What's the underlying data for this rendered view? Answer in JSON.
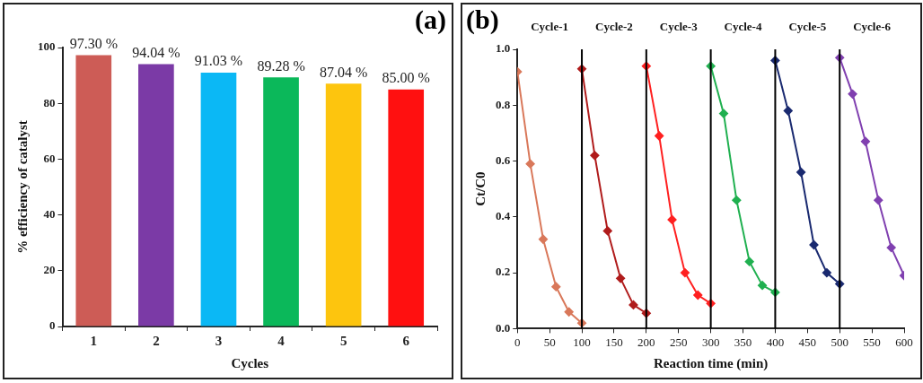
{
  "chart_data": [
    {
      "type": "bar",
      "xlabel": "Cycles",
      "ylabel": "% efficiency of catalyst",
      "categories": [
        "1",
        "2",
        "3",
        "4",
        "5",
        "6"
      ],
      "values": [
        97.3,
        94.04,
        91.03,
        89.28,
        87.04,
        85.0
      ],
      "colors": [
        "#cd5c56",
        "#7b3aa6",
        "#0bb8f5",
        "#0bb85a",
        "#fdc50e",
        "#ff1010"
      ],
      "value_labels": [
        "97.30 %",
        "94.04 %",
        "91.03 %",
        "89.28 %",
        "87.04 %",
        "85.00 %"
      ],
      "ylim": [
        0,
        100
      ],
      "yticks": [
        0,
        20,
        40,
        60,
        80,
        100
      ],
      "grid": false,
      "legend": false,
      "annotations": [
        "(a)"
      ]
    },
    {
      "type": "line",
      "xlabel": "Reaction time (min)",
      "ylabel": "Ct/C0",
      "marker": "diamond",
      "grid": false,
      "legend": false,
      "xlim": [
        0,
        600
      ],
      "xticks": [
        0,
        50,
        100,
        150,
        200,
        250,
        300,
        350,
        400,
        450,
        500,
        550,
        600
      ],
      "ylim": [
        0,
        1
      ],
      "yticks": [
        {
          "value": 0,
          "label": "0.0"
        },
        0.2,
        0.4,
        0.6,
        0.8,
        {
          "value": 1,
          "label": "1.0"
        }
      ],
      "series": [
        {
          "color": "#d9785a",
          "x": [
            0,
            20,
            40,
            60,
            80,
            100
          ],
          "values": [
            0.92,
            0.59,
            0.32,
            0.15,
            0.06,
            0.02
          ]
        },
        {
          "color": "#b01c1c",
          "x": [
            100,
            120,
            140,
            160,
            180,
            200
          ],
          "values": [
            0.93,
            0.62,
            0.35,
            0.18,
            0.085,
            0.055
          ]
        },
        {
          "color": "#ff2020",
          "x": [
            200,
            220,
            240,
            260,
            280,
            300
          ],
          "values": [
            0.94,
            0.69,
            0.39,
            0.2,
            0.12,
            0.09
          ]
        },
        {
          "color": "#20b050",
          "x": [
            300,
            320,
            340,
            360,
            380,
            400
          ],
          "values": [
            0.94,
            0.77,
            0.46,
            0.24,
            0.155,
            0.13
          ]
        },
        {
          "color": "#1a2a70",
          "x": [
            400,
            420,
            440,
            460,
            480,
            500
          ],
          "values": [
            0.96,
            0.78,
            0.56,
            0.3,
            0.2,
            0.16
          ]
        },
        {
          "color": "#8040b0",
          "x": [
            500,
            520,
            540,
            560,
            580,
            600
          ],
          "values": [
            0.97,
            0.84,
            0.67,
            0.46,
            0.29,
            0.19
          ]
        }
      ],
      "ref_lines": [
        {
          "axis": "x",
          "value": 100,
          "color": "#000000"
        },
        {
          "axis": "x",
          "value": 200,
          "color": "#000000"
        },
        {
          "axis": "x",
          "value": 300,
          "color": "#000000"
        },
        {
          "axis": "x",
          "value": 400,
          "color": "#000000"
        },
        {
          "axis": "x",
          "value": 500,
          "color": "#000000"
        }
      ],
      "annotations": [
        "(b)",
        "Cycle-1",
        "Cycle-2",
        "Cycle-3",
        "Cycle-4",
        "Cycle-5",
        "Cycle-6"
      ]
    }
  ]
}
